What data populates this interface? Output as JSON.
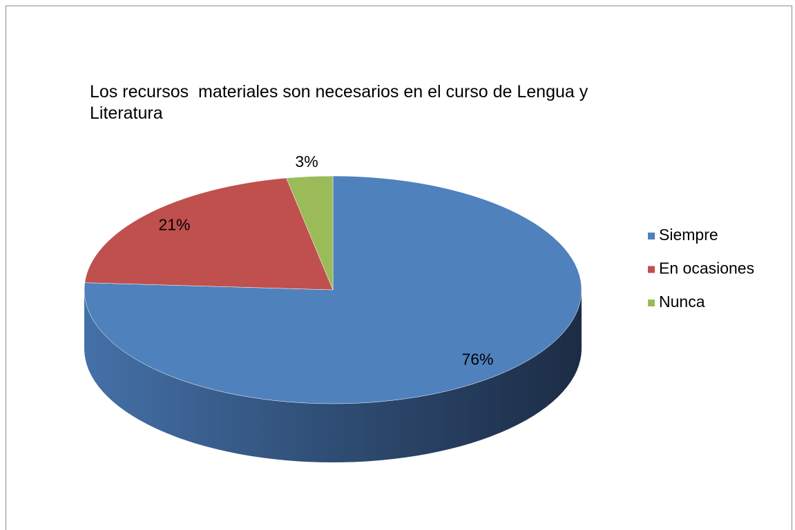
{
  "chart_data": {
    "type": "pie",
    "title": "Los recursos  materiales son necesarios en el curso de Lengua y Literatura",
    "categories": [
      "Siempre",
      "En ocasiones",
      "Nunca"
    ],
    "values": [
      76,
      21,
      3
    ],
    "value_labels": [
      "76%",
      "21%",
      "3%"
    ],
    "colors": [
      "#4f81bd",
      "#c0504d",
      "#9bbb59"
    ],
    "legend": "right"
  }
}
